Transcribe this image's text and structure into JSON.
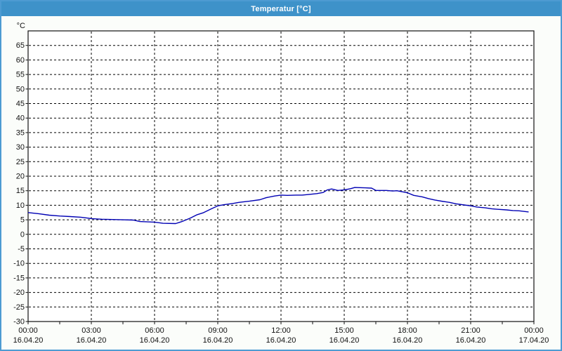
{
  "window": {
    "title": "Temperatur [°C]",
    "titlebar_color": "#3e92c9",
    "border_color": "#4d9bd2",
    "background_color": "#fbfdfa"
  },
  "chart_data": {
    "type": "line",
    "title": "Temperatur [°C]",
    "grid": "dashed",
    "legend_position": "none",
    "plot_background": "#ffffff",
    "grid_color": "#000000",
    "line_color": "#0000b4",
    "y_axis": {
      "unit_label": "°C",
      "min": -30,
      "max": 70,
      "tick_step": 5,
      "tick_labels": [
        65,
        60,
        55,
        50,
        45,
        40,
        35,
        30,
        25,
        20,
        15,
        10,
        5,
        0,
        -5,
        -10,
        -15,
        -20,
        -25,
        -30
      ]
    },
    "x_axis": {
      "hours_range": [
        0,
        24
      ],
      "major_tick_hours": 3,
      "minor_tick_hours": 1.5,
      "tick_labels": [
        {
          "time": "00:00",
          "date": "16.04.20"
        },
        {
          "time": "03:00",
          "date": "16.04.20"
        },
        {
          "time": "06:00",
          "date": "16.04.20"
        },
        {
          "time": "09:00",
          "date": "16.04.20"
        },
        {
          "time": "12:00",
          "date": "16.04.20"
        },
        {
          "time": "15:00",
          "date": "16.04.20"
        },
        {
          "time": "18:00",
          "date": "16.04.20"
        },
        {
          "time": "21:00",
          "date": "16.04.20"
        },
        {
          "time": "00:00",
          "date": "17.04.20"
        }
      ]
    },
    "series": [
      {
        "name": "Temperatur",
        "color": "#0000b4",
        "x_hours": [
          0,
          0.5,
          1,
          1.5,
          2,
          2.5,
          2.8,
          3,
          3.5,
          4,
          4.5,
          5,
          5.3,
          6,
          6.4,
          7,
          7.3,
          7.7,
          8,
          8.3,
          8.7,
          9,
          9.3,
          9.7,
          10,
          10.5,
          11,
          11.3,
          11.7,
          12,
          12.3,
          12.7,
          13,
          13.3,
          13.7,
          14,
          14.2,
          14.4,
          14.7,
          15,
          15.3,
          15.5,
          16,
          16.3,
          16.5,
          17,
          17.3,
          17.5,
          17.8,
          18,
          18.3,
          18.7,
          19,
          19.3,
          19.7,
          20,
          20.3,
          20.7,
          21,
          21.3,
          21.7,
          22,
          22.3,
          22.7,
          23,
          23.3,
          23.75
        ],
        "values_c": [
          7.5,
          7.1,
          6.6,
          6.3,
          6.1,
          5.9,
          5.6,
          5.4,
          5.2,
          5.1,
          5.0,
          4.9,
          4.4,
          4.2,
          3.8,
          3.7,
          4.4,
          5.6,
          6.7,
          7.4,
          8.8,
          9.8,
          10.2,
          10.6,
          11.0,
          11.4,
          11.9,
          12.6,
          13.2,
          13.5,
          13.4,
          13.5,
          13.5,
          13.7,
          14.0,
          14.4,
          15.3,
          15.6,
          15.1,
          15.3,
          15.7,
          16.1,
          16.0,
          15.9,
          15.1,
          15.1,
          14.9,
          15.0,
          14.6,
          14.3,
          13.4,
          12.9,
          12.3,
          11.8,
          11.3,
          11.0,
          10.5,
          10.1,
          9.8,
          9.4,
          9.1,
          8.8,
          8.6,
          8.4,
          8.2,
          8.1,
          7.7
        ]
      }
    ]
  }
}
